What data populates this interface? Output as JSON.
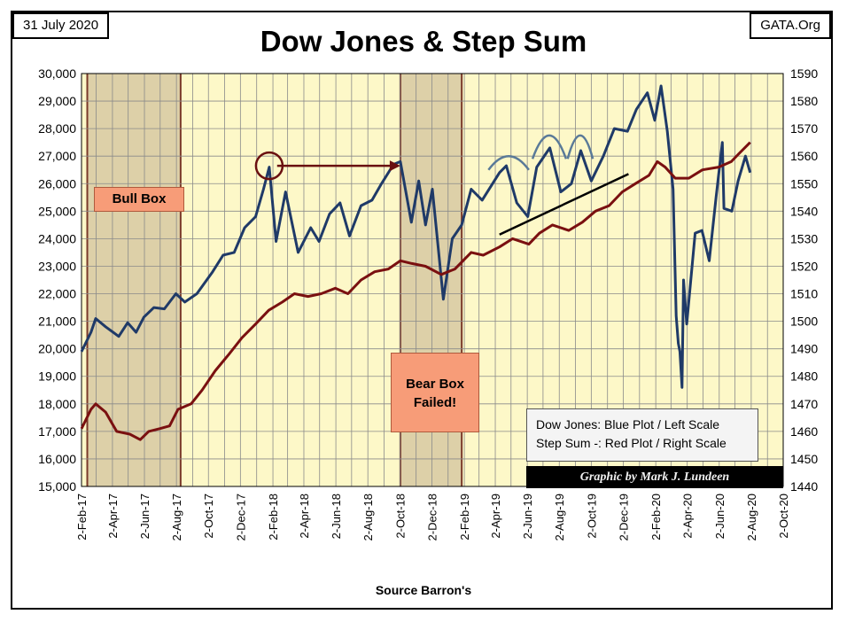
{
  "header": {
    "date": "31 July 2020",
    "site": "GATA.Org",
    "title": "Dow Jones & Step Sum"
  },
  "footer": {
    "source": "Source Barron's"
  },
  "annotations": {
    "bull_box": "Bull Box",
    "bear_box_line1": "Bear Box",
    "bear_box_line2": "Failed!",
    "legend_line1": "Dow Jones: Blue Plot / Left Scale",
    "legend_line2": "Step Sum -: Red Plot / Right Scale",
    "credit": "Graphic by Mark J. Lundeen"
  },
  "chart_data": {
    "type": "line",
    "x_tick_labels": [
      "2-Feb-17",
      "2-Apr-17",
      "2-Jun-17",
      "2-Aug-17",
      "2-Oct-17",
      "2-Dec-17",
      "2-Feb-18",
      "2-Apr-18",
      "2-Jun-18",
      "2-Aug-18",
      "2-Oct-18",
      "2-Dec-18",
      "2-Feb-19",
      "2-Apr-19",
      "2-Jun-19",
      "2-Aug-19",
      "2-Oct-19",
      "2-Dec-19",
      "2-Feb-20",
      "2-Apr-20",
      "2-Jun-20",
      "2-Aug-20",
      "2-Oct-20"
    ],
    "xlim": [
      "2017-02-02",
      "2020-10-02"
    ],
    "y_left": {
      "ylim": [
        15000,
        30000
      ],
      "tick_labels": [
        "15,000",
        "16,000",
        "17,000",
        "18,000",
        "19,000",
        "20,000",
        "21,000",
        "22,000",
        "23,000",
        "24,000",
        "25,000",
        "26,000",
        "27,000",
        "28,000",
        "29,000",
        "30,000"
      ]
    },
    "y_right": {
      "ylim": [
        1440,
        1590
      ],
      "tick_labels": [
        "1440",
        "1450",
        "1460",
        "1470",
        "1480",
        "1490",
        "1500",
        "1510",
        "1520",
        "1530",
        "1540",
        "1550",
        "1560",
        "1570",
        "1580",
        "1590"
      ]
    },
    "grid": true,
    "shaded_regions": [
      {
        "name": "Bull Box",
        "start": "2017-02-13",
        "end": "2017-08-10"
      },
      {
        "name": "Bear Box",
        "start": "2018-10-03",
        "end": "2019-01-28"
      }
    ],
    "series": [
      {
        "axis": "left",
        "color": "#1f3a68",
        "points": [
          [
            "2017-02-02",
            19900
          ],
          [
            "2017-02-20",
            20600
          ],
          [
            "2017-03-01",
            21100
          ],
          [
            "2017-03-20",
            20800
          ],
          [
            "2017-04-14",
            20450
          ],
          [
            "2017-05-01",
            20950
          ],
          [
            "2017-05-17",
            20600
          ],
          [
            "2017-06-01",
            21150
          ],
          [
            "2017-06-20",
            21500
          ],
          [
            "2017-07-10",
            21450
          ],
          [
            "2017-08-01",
            22000
          ],
          [
            "2017-08-18",
            21700
          ],
          [
            "2017-09-10",
            22000
          ],
          [
            "2017-09-25",
            22400
          ],
          [
            "2017-10-10",
            22800
          ],
          [
            "2017-10-30",
            23400
          ],
          [
            "2017-11-20",
            23500
          ],
          [
            "2017-12-10",
            24400
          ],
          [
            "2017-12-31",
            24800
          ],
          [
            "2018-01-15",
            25800
          ],
          [
            "2018-01-26",
            26600
          ],
          [
            "2018-02-08",
            23900
          ],
          [
            "2018-02-26",
            25700
          ],
          [
            "2018-03-22",
            23500
          ],
          [
            "2018-04-15",
            24400
          ],
          [
            "2018-05-01",
            23900
          ],
          [
            "2018-05-21",
            24900
          ],
          [
            "2018-06-10",
            25300
          ],
          [
            "2018-06-28",
            24100
          ],
          [
            "2018-07-20",
            25200
          ],
          [
            "2018-08-10",
            25400
          ],
          [
            "2018-08-28",
            26000
          ],
          [
            "2018-09-20",
            26700
          ],
          [
            "2018-10-03",
            26800
          ],
          [
            "2018-10-24",
            24600
          ],
          [
            "2018-11-07",
            26100
          ],
          [
            "2018-11-20",
            24500
          ],
          [
            "2018-12-03",
            25800
          ],
          [
            "2018-12-24",
            21800
          ],
          [
            "2019-01-10",
            24000
          ],
          [
            "2019-01-28",
            24500
          ],
          [
            "2019-02-15",
            25800
          ],
          [
            "2019-03-08",
            25400
          ],
          [
            "2019-04-10",
            26400
          ],
          [
            "2019-04-23",
            26650
          ],
          [
            "2019-05-13",
            25300
          ],
          [
            "2019-06-03",
            24800
          ],
          [
            "2019-06-20",
            26600
          ],
          [
            "2019-07-15",
            27300
          ],
          [
            "2019-08-05",
            25700
          ],
          [
            "2019-08-25",
            26000
          ],
          [
            "2019-09-12",
            27200
          ],
          [
            "2019-10-02",
            26100
          ],
          [
            "2019-10-25",
            27000
          ],
          [
            "2019-11-15",
            28000
          ],
          [
            "2019-12-10",
            27900
          ],
          [
            "2019-12-27",
            28700
          ],
          [
            "2020-01-17",
            29300
          ],
          [
            "2020-01-31",
            28300
          ],
          [
            "2020-02-12",
            29550
          ],
          [
            "2020-02-24",
            27900
          ],
          [
            "2020-03-06",
            25800
          ],
          [
            "2020-03-12",
            21200
          ],
          [
            "2020-03-16",
            20200
          ],
          [
            "2020-03-19",
            19900
          ],
          [
            "2020-03-23",
            18600
          ],
          [
            "2020-03-26",
            22500
          ],
          [
            "2020-04-01",
            20900
          ],
          [
            "2020-04-17",
            24200
          ],
          [
            "2020-04-30",
            24300
          ],
          [
            "2020-05-14",
            23200
          ],
          [
            "2020-05-27",
            25500
          ],
          [
            "2020-06-08",
            27500
          ],
          [
            "2020-06-11",
            25100
          ],
          [
            "2020-06-26",
            25000
          ],
          [
            "2020-07-08",
            26100
          ],
          [
            "2020-07-22",
            27000
          ],
          [
            "2020-07-31",
            26400
          ]
        ]
      },
      {
        "axis": "right",
        "color": "#7a1010",
        "points": [
          [
            "2017-02-02",
            1461
          ],
          [
            "2017-02-20",
            1468
          ],
          [
            "2017-03-01",
            1470
          ],
          [
            "2017-03-20",
            1467
          ],
          [
            "2017-04-10",
            1460
          ],
          [
            "2017-05-05",
            1459
          ],
          [
            "2017-05-25",
            1457
          ],
          [
            "2017-06-10",
            1460
          ],
          [
            "2017-07-01",
            1461
          ],
          [
            "2017-07-20",
            1462
          ],
          [
            "2017-08-05",
            1468
          ],
          [
            "2017-08-30",
            1470
          ],
          [
            "2017-09-20",
            1475
          ],
          [
            "2017-10-15",
            1482
          ],
          [
            "2017-11-10",
            1488
          ],
          [
            "2017-12-05",
            1494
          ],
          [
            "2017-12-31",
            1499
          ],
          [
            "2018-01-25",
            1504
          ],
          [
            "2018-02-20",
            1507
          ],
          [
            "2018-03-15",
            1510
          ],
          [
            "2018-04-10",
            1509
          ],
          [
            "2018-05-05",
            1510
          ],
          [
            "2018-06-01",
            1512
          ],
          [
            "2018-06-25",
            1510
          ],
          [
            "2018-07-20",
            1515
          ],
          [
            "2018-08-15",
            1518
          ],
          [
            "2018-09-10",
            1519
          ],
          [
            "2018-10-03",
            1522
          ],
          [
            "2018-10-25",
            1521
          ],
          [
            "2018-11-20",
            1520
          ],
          [
            "2018-12-20",
            1517
          ],
          [
            "2019-01-15",
            1519
          ],
          [
            "2019-02-15",
            1525
          ],
          [
            "2019-03-10",
            1524
          ],
          [
            "2019-04-10",
            1527
          ],
          [
            "2019-05-05",
            1530
          ],
          [
            "2019-06-05",
            1528
          ],
          [
            "2019-06-25",
            1532
          ],
          [
            "2019-07-20",
            1535
          ],
          [
            "2019-08-20",
            1533
          ],
          [
            "2019-09-15",
            1536
          ],
          [
            "2019-10-10",
            1540
          ],
          [
            "2019-11-05",
            1542
          ],
          [
            "2019-11-30",
            1547
          ],
          [
            "2019-12-25",
            1550
          ],
          [
            "2020-01-20",
            1553
          ],
          [
            "2020-02-05",
            1558
          ],
          [
            "2020-02-20",
            1556
          ],
          [
            "2020-03-10",
            1552
          ],
          [
            "2020-04-05",
            1552
          ],
          [
            "2020-05-01",
            1555
          ],
          [
            "2020-06-01",
            1556
          ],
          [
            "2020-06-25",
            1558
          ],
          [
            "2020-07-10",
            1561
          ],
          [
            "2020-07-31",
            1565
          ]
        ]
      }
    ],
    "overlays": {
      "circle_center": [
        "2018-01-26",
        26650
      ],
      "arrow": {
        "from": [
          "2018-02-10",
          26650
        ],
        "to": [
          "2018-10-03",
          26650
        ]
      },
      "trendline": {
        "from": [
          "2019-04-10",
          24150
        ],
        "to": [
          "2019-12-12",
          26350
        ]
      },
      "arcs": [
        [
          "2019-03-20",
          "2019-06-05",
          26500,
          27000
        ],
        [
          "2019-06-12",
          "2019-08-15",
          26900,
          27750
        ],
        [
          "2019-08-18",
          "2019-10-05",
          26900,
          27750
        ]
      ]
    }
  }
}
